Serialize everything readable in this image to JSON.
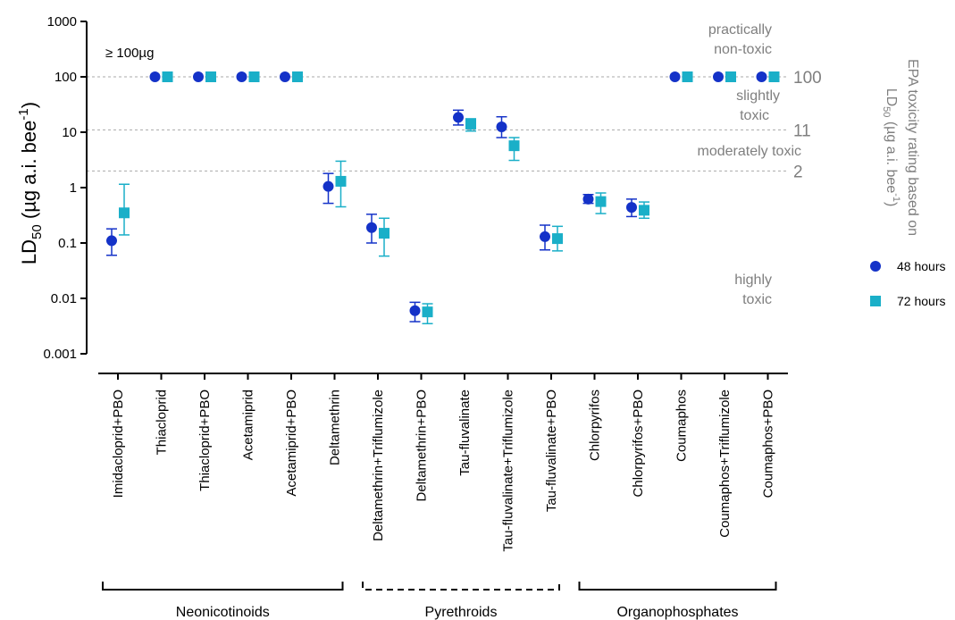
{
  "chart_data": {
    "type": "scatter",
    "ylabel": {
      "main": "LD",
      "sub": "50",
      "rest": " (µg a.i. bee",
      "sup": "-1",
      "close": ")"
    },
    "yscale": "log",
    "ylim": [
      0.001,
      1000
    ],
    "yticks": [
      "0.001",
      "0.01",
      "0.1",
      "1",
      "10",
      "100",
      "1000"
    ],
    "ytick_values": [
      0.001,
      0.01,
      0.1,
      1,
      10,
      100,
      1000
    ],
    "categories": [
      "Imidacloprid+PBO",
      "Thiacloprid",
      "Thiacloprid+PBO",
      "Acetamiprid",
      "Acetamiprid+PBO",
      "Deltamethrin",
      "Deltamethrin+Triflumizole",
      "Deltamethrin+PBO",
      "Tau-fluvalinate",
      "Tau-fluvalinate+Triflumizole",
      "Tau-fluvalinate+PBO",
      "Chlorpyrifos",
      "Chlorpyrifos+PBO",
      "Coumaphos",
      "Coumaphos+Triflumizole",
      "Coumaphos+PBO"
    ],
    "series": [
      {
        "name": "48 hours",
        "marker": "circle",
        "color": "#1432c8",
        "values": [
          0.11,
          100,
          100,
          100,
          100,
          1.05,
          0.19,
          0.006,
          18.5,
          12.5,
          0.13,
          0.62,
          0.44,
          100,
          100,
          100
        ],
        "lower": [
          0.06,
          null,
          null,
          null,
          null,
          0.52,
          0.1,
          0.0038,
          13.5,
          8.0,
          0.075,
          0.52,
          0.3,
          null,
          null,
          null
        ],
        "upper": [
          0.18,
          null,
          null,
          null,
          null,
          1.8,
          0.33,
          0.0085,
          25.0,
          19.0,
          0.21,
          0.75,
          0.62,
          null,
          null,
          null
        ]
      },
      {
        "name": "72 hours",
        "marker": "square",
        "color": "#1aafc8",
        "values": [
          0.35,
          100,
          100,
          100,
          100,
          1.3,
          0.15,
          0.0057,
          14.0,
          5.7,
          0.12,
          0.56,
          0.39,
          100,
          100,
          100
        ],
        "lower": [
          0.14,
          null,
          null,
          null,
          null,
          0.45,
          0.058,
          0.0035,
          10.5,
          3.1,
          0.072,
          0.34,
          0.28,
          null,
          null,
          null
        ],
        "upper": [
          1.15,
          null,
          null,
          null,
          null,
          3.0,
          0.28,
          0.008,
          17.5,
          8.0,
          0.2,
          0.8,
          0.55,
          null,
          null,
          null
        ]
      }
    ],
    "annotation_top_left": "≥ 100µg",
    "thresholds": [
      {
        "value": 100,
        "label": "100"
      },
      {
        "value": 11,
        "label": "11"
      },
      {
        "value": 2,
        "label": "2"
      }
    ],
    "toxicity_bands": {
      "practically_non_toxic": [
        "practically",
        "non-toxic"
      ],
      "slightly_toxic": [
        "slightly",
        "toxic"
      ],
      "moderately_toxic": [
        "moderately toxic"
      ],
      "highly_toxic": [
        "highly",
        "toxic"
      ]
    },
    "right_axis_title": {
      "line1": "EPA toxicity rating based on",
      "line2_main": "LD",
      "line2_sub": "50",
      "line2_rest": " (µg a.i. bee",
      "line2_sup": "-1",
      "line2_close": ")"
    },
    "groups": [
      {
        "label": "Neonicotinoids",
        "start": 0,
        "end": 5,
        "style": "solid"
      },
      {
        "label": "Pyrethroids",
        "start": 6,
        "end": 10,
        "style": "dashed"
      },
      {
        "label": "Organophosphates",
        "start": 11,
        "end": 15,
        "style": "solid"
      }
    ],
    "legend": [
      {
        "label": "48 hours",
        "marker": "circle",
        "color": "#1432c8"
      },
      {
        "label": "72 hours",
        "marker": "square",
        "color": "#1aafc8"
      }
    ],
    "legend_placement": "right",
    "grid": "threshold-lines-only"
  }
}
